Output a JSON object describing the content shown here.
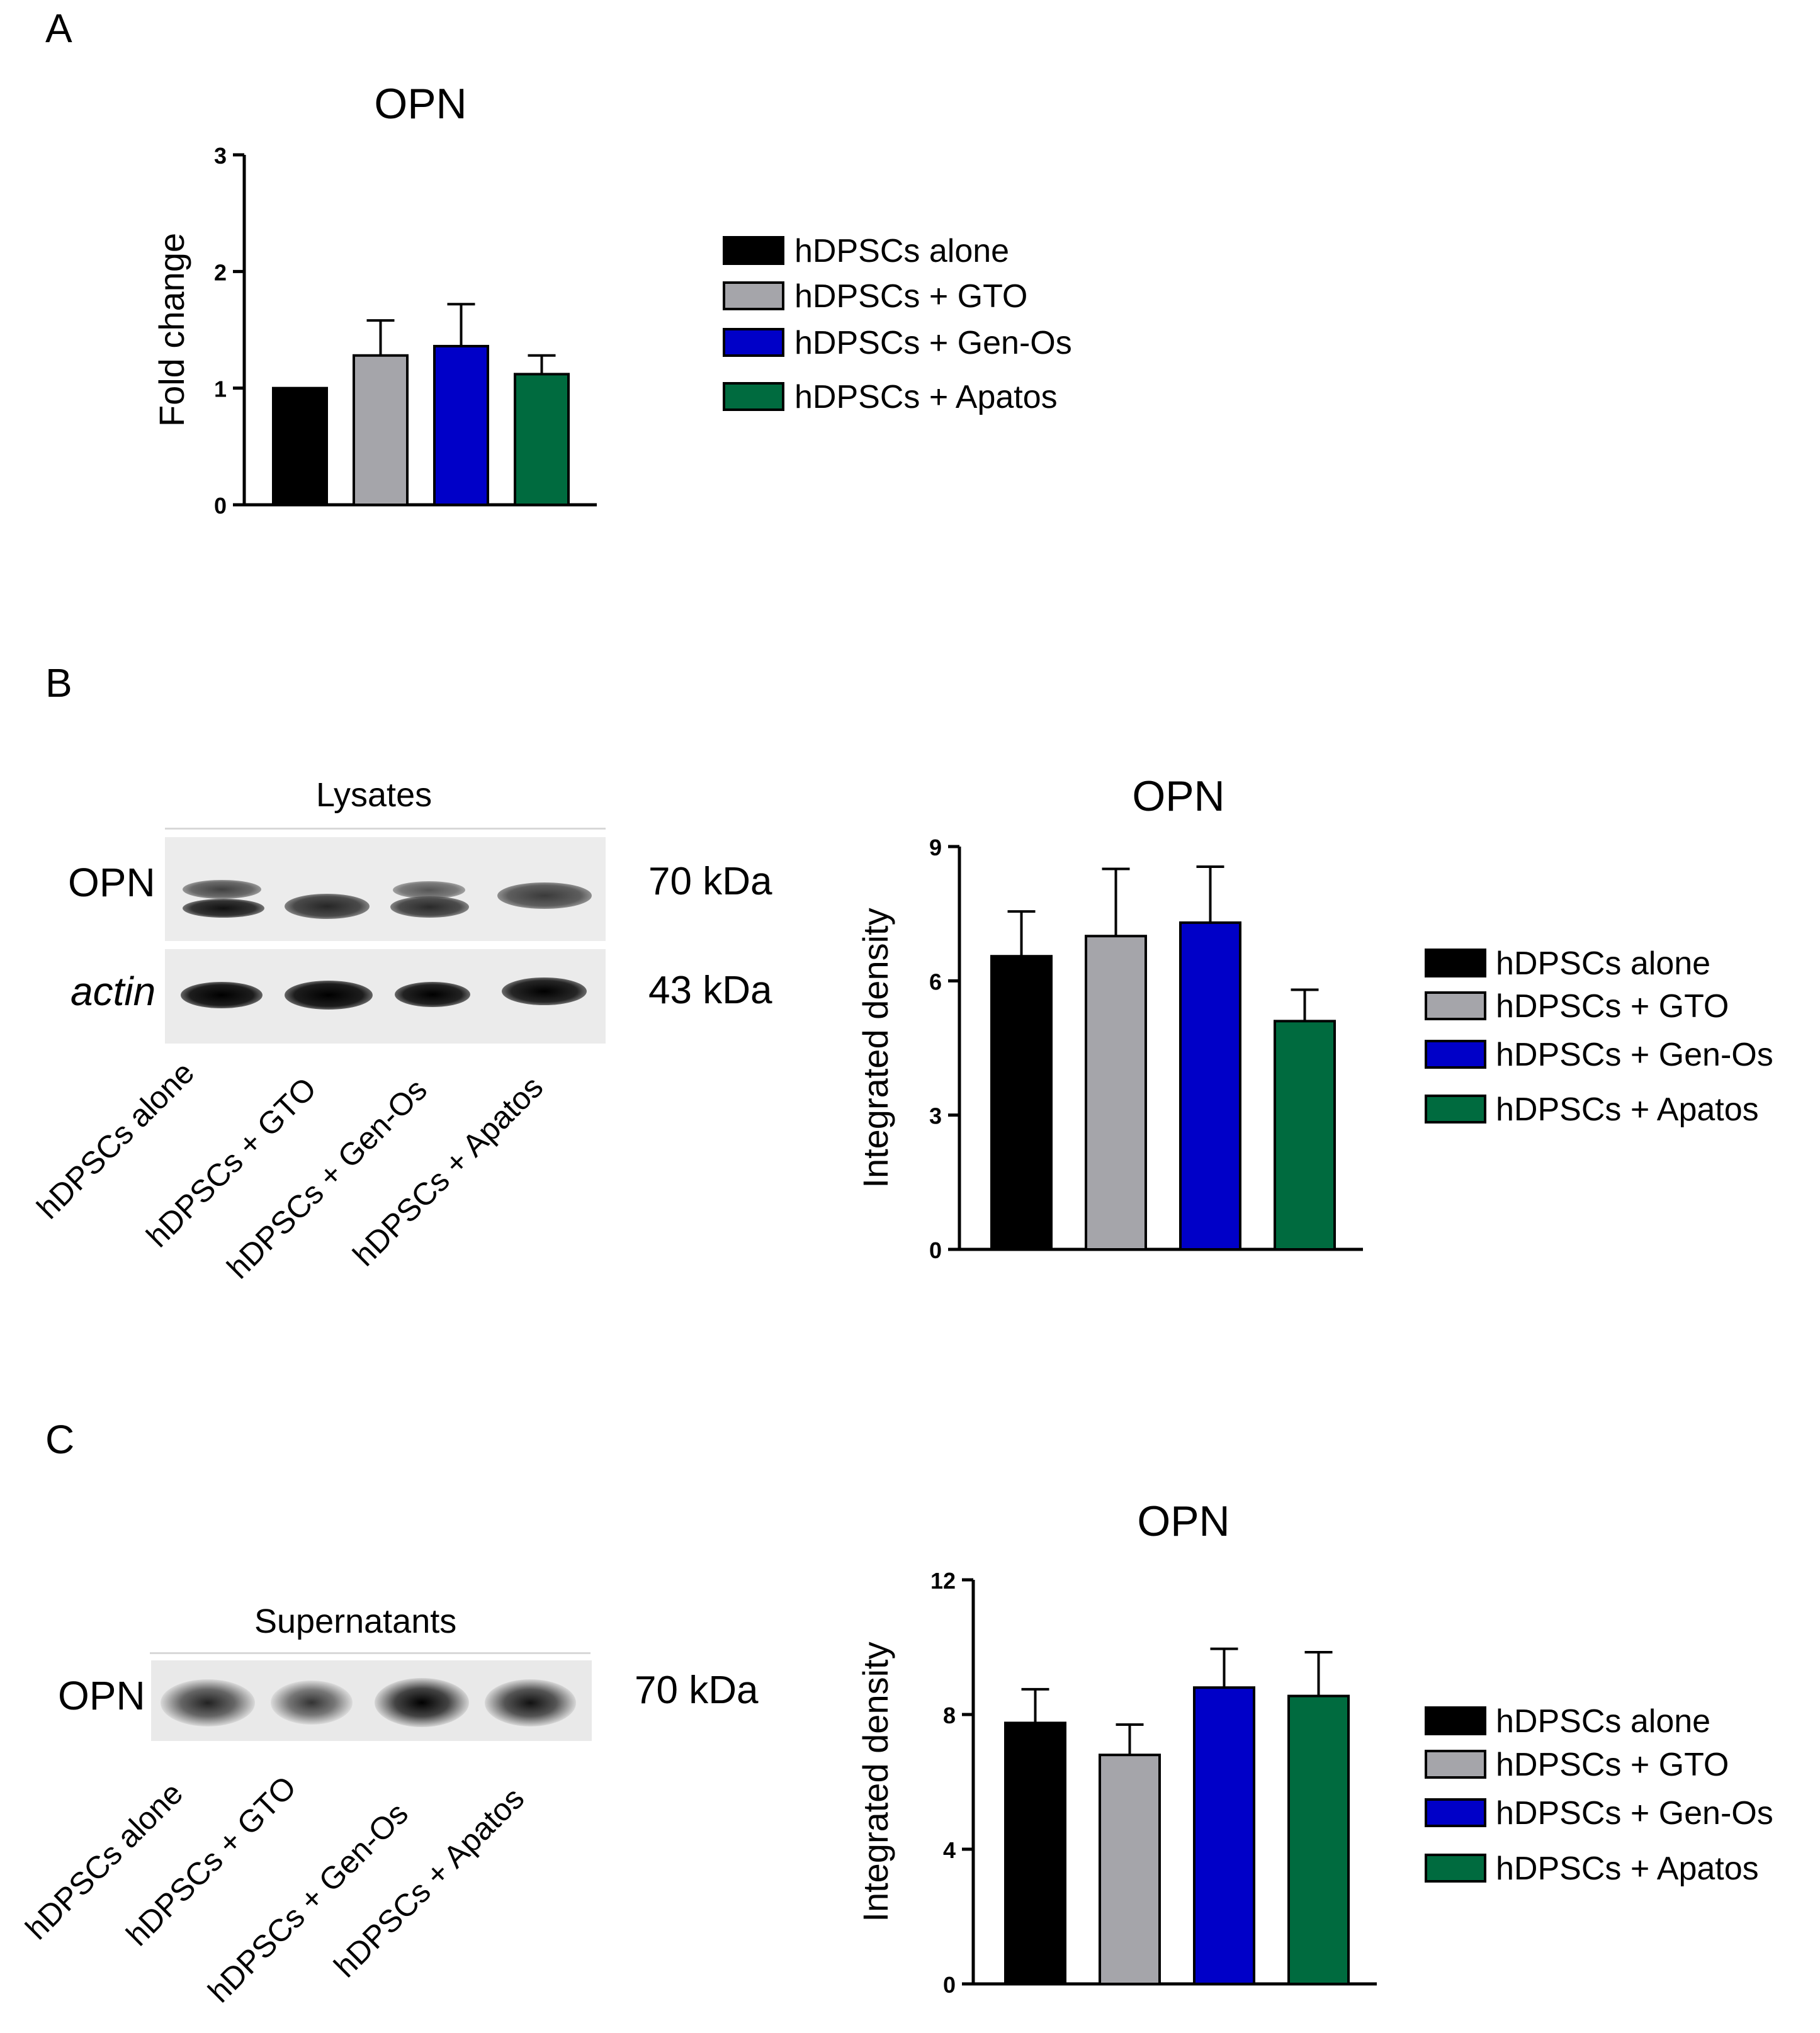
{
  "panels": {
    "a": {
      "letter": "A"
    },
    "b": {
      "letter": "B"
    },
    "c": {
      "letter": "C"
    }
  },
  "blot_b": {
    "title": "Lysates",
    "rows": [
      {
        "label": "OPN",
        "kda": "70 kDa"
      },
      {
        "label": "actin",
        "kda": "43 kDa"
      }
    ],
    "lanes": [
      "hDPSCs alone",
      "hDPSCs + GTO",
      "hDPSCs + Gen-Os",
      "hDPSCs + Apatos"
    ]
  },
  "blot_c": {
    "title": "Supernatants",
    "rows": [
      {
        "label": "OPN",
        "kda": "70 kDa"
      }
    ],
    "lanes": [
      "hDPSCs alone",
      "hDPSCs + GTO",
      "hDPSCs + Gen-Os",
      "hDPSCs + Apatos"
    ]
  },
  "colors": {
    "hDPSCs alone": "#000000",
    "hDPSCs + GTO": "#a5a5aa",
    "hDPSCs + Gen-Os": "#0000c8",
    "hDPSCs + Apatos": "#006b3f"
  },
  "chart_data": [
    {
      "type": "bar",
      "title": "OPN",
      "ylabel": "Fold change",
      "xlabel": "",
      "ylim": [
        0,
        3
      ],
      "yticks": [
        0,
        1,
        2,
        3
      ],
      "categories": [
        "hDPSCs alone",
        "hDPSCs + GTO",
        "hDPSCs + Gen-Os",
        "hDPSCs + Apatos"
      ],
      "values": [
        1.0,
        1.28,
        1.36,
        1.12
      ],
      "errors": [
        0,
        0.3,
        0.36,
        0.16
      ],
      "legend": "right",
      "grid": false
    },
    {
      "type": "bar",
      "title": "OPN",
      "ylabel": "Integrated density",
      "xlabel": "",
      "ylim": [
        0,
        9
      ],
      "yticks": [
        0,
        3,
        6,
        9
      ],
      "categories": [
        "hDPSCs alone",
        "hDPSCs + GTO",
        "hDPSCs + Gen-Os",
        "hDPSCs + Apatos"
      ],
      "values": [
        6.55,
        7.0,
        7.3,
        5.1
      ],
      "errors": [
        1.0,
        1.5,
        1.25,
        0.7
      ],
      "legend": "right",
      "grid": false
    },
    {
      "type": "bar",
      "title": "OPN",
      "ylabel": "Integrated density",
      "xlabel": "",
      "ylim": [
        0,
        12
      ],
      "yticks": [
        0,
        4,
        8,
        12
      ],
      "categories": [
        "hDPSCs alone",
        "hDPSCs + GTO",
        "hDPSCs + Gen-Os",
        "hDPSCs + Apatos"
      ],
      "values": [
        7.75,
        6.8,
        8.8,
        8.55
      ],
      "errors": [
        1.0,
        0.9,
        1.15,
        1.3
      ],
      "legend": "right",
      "grid": false
    }
  ]
}
